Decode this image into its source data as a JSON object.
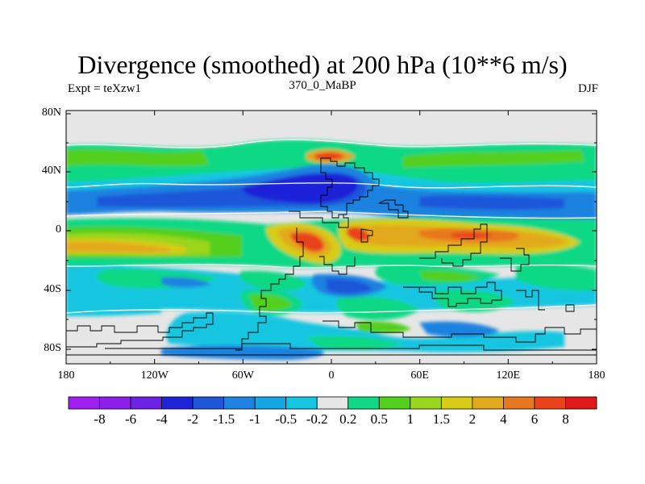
{
  "title": "Divergence (smoothed) at 200 hPa (10**6 m/s)",
  "left_label": "Expt = teXzw1",
  "center_label": "370_0_MaBP",
  "right_label": "DJF",
  "y_axis": {
    "ticks": [
      "80N",
      "40N",
      "0",
      "40S",
      "80S"
    ],
    "values": [
      80,
      40,
      0,
      -40,
      -80
    ]
  },
  "x_axis": {
    "ticks": [
      "180",
      "120W",
      "60W",
      "0",
      "60E",
      "120E",
      "180"
    ],
    "values": [
      -180,
      -120,
      -60,
      0,
      60,
      120,
      180
    ]
  },
  "colorbar": {
    "labels": [
      "-8",
      "-6",
      "-4",
      "-2",
      "-1.5",
      "-1",
      "-0.5",
      "-0.2",
      "0.2",
      "0.5",
      "1",
      "1.5",
      "2",
      "4",
      "6",
      "8"
    ],
    "colors": [
      "#9f1fef",
      "#8c1fea",
      "#6a22e4",
      "#1f24d8",
      "#1f56d9",
      "#1f82e0",
      "#15a6e6",
      "#15c6e1",
      "#e6e6e6",
      "#10d884",
      "#53cf1e",
      "#9bd51d",
      "#d7cc16",
      "#e3a91c",
      "#e8781f",
      "#e8431b",
      "#e01a1a"
    ]
  }
}
